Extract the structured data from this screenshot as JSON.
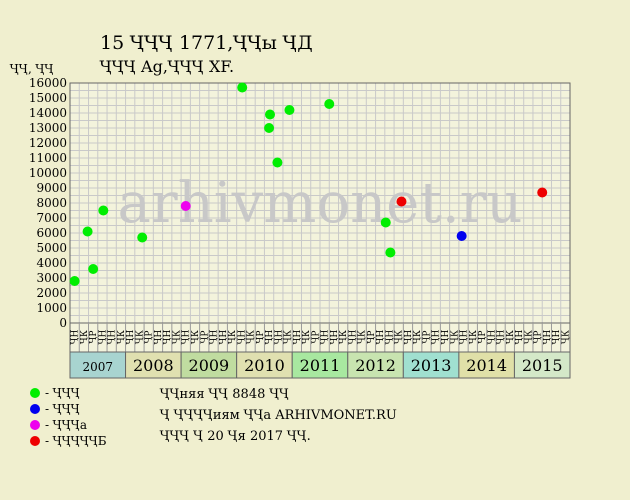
{
  "chart_data": {
    "type": "scatter",
    "title": "15 ҶҶҶ 1771,ҶҶы ҶД",
    "subtitle": "ҶҶҶ Ag,ҶҶҶ XF.",
    "ylabel": "ҶҶ, ҶҶ",
    "ylim": [
      0,
      16000
    ],
    "yticks": [
      0,
      1000,
      2000,
      3000,
      4000,
      5000,
      6000,
      7000,
      8000,
      9000,
      10000,
      11000,
      12000,
      13000,
      14000,
      15000,
      16000
    ],
    "watermark": "arhivmonet.ru",
    "grid": true,
    "month_labels": [
      "ҶН",
      "ҶК",
      "ҶР",
      "ҶН",
      "ҶН",
      "ҶК"
    ],
    "years": [
      {
        "label": "2007",
        "color": "#a8d4d0"
      },
      {
        "label": "2008",
        "color": "#e0e0b0"
      },
      {
        "label": "2009",
        "color": "#c0dca0"
      },
      {
        "label": "2010",
        "color": "#e0e0b0"
      },
      {
        "label": "2011",
        "color": "#a8e8a0"
      },
      {
        "label": "2012",
        "color": "#c8e4b0"
      },
      {
        "label": "2013",
        "color": "#a0e0d0"
      },
      {
        "label": "2014",
        "color": "#e0e0a8"
      },
      {
        "label": "2015",
        "color": "#d4e8c8"
      }
    ],
    "series": [
      {
        "name": "- ҶҶҶ",
        "color": "#00ee00",
        "points": [
          {
            "m": 0.5,
            "y": 2800
          },
          {
            "m": 1.9,
            "y": 6100
          },
          {
            "m": 2.5,
            "y": 3600
          },
          {
            "m": 3.6,
            "y": 7500
          },
          {
            "m": 7.8,
            "y": 5700
          },
          {
            "m": 18.6,
            "y": 15700
          },
          {
            "m": 21.5,
            "y": 13000
          },
          {
            "m": 21.6,
            "y": 13900
          },
          {
            "m": 22.4,
            "y": 10700
          },
          {
            "m": 23.7,
            "y": 14200
          },
          {
            "m": 28.0,
            "y": 14600
          },
          {
            "m": 34.1,
            "y": 6700
          },
          {
            "m": 34.6,
            "y": 4700
          }
        ]
      },
      {
        "name": "- ҶҶҶ",
        "color": "#0000ee",
        "points": [
          {
            "m": 42.3,
            "y": 5800
          }
        ]
      },
      {
        "name": "- ҶҶҶа",
        "color": "#ee00ee",
        "points": [
          {
            "m": 12.5,
            "y": 7800
          }
        ]
      },
      {
        "name": "- ҶҶҶҶҶБ",
        "color": "#ee0000",
        "points": [
          {
            "m": 35.8,
            "y": 8100
          },
          {
            "m": 51.0,
            "y": 8700
          }
        ]
      }
    ]
  },
  "notes": [
    "ҶҶняя ҶҶ 8848 ҶҶ",
    "Ҷ ҶҶҶҶиям ҶҶа ARHIVMONET.RU",
    "ҶҶҶ Ҷ 20 Ҷя 2017 ҶҶ."
  ]
}
